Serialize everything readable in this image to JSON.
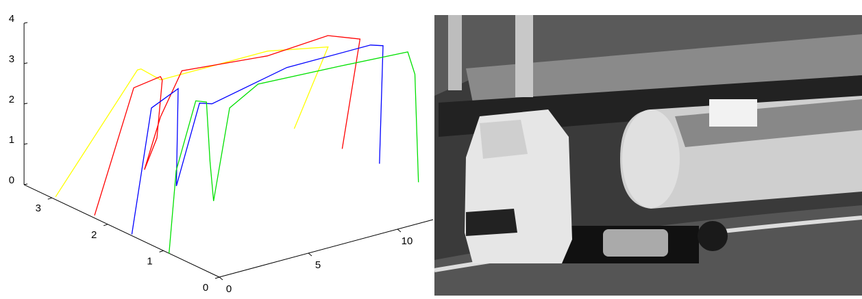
{
  "chart_data": {
    "type": "line3d",
    "xlim": [
      0,
      12
    ],
    "xticks": [
      0,
      5,
      10
    ],
    "ylim": [
      0,
      3.5
    ],
    "yticks": [
      0,
      1,
      2,
      3
    ],
    "zlim": [
      0,
      4
    ],
    "zticks": [
      0,
      1,
      2,
      3,
      4
    ],
    "series": [
      {
        "color": "#ffff00",
        "depth": 3,
        "x": [
          0.2,
          4.8,
          5.0,
          6.1,
          8.6,
          12.1,
          15.5,
          13.6
        ],
        "values": [
          0,
          2.6,
          2.6,
          2.2,
          2.2,
          2.2,
          1.9,
          0.1
        ]
      },
      {
        "color": "#ff0000",
        "depth": 2.3,
        "x": [
          0.2,
          2.4,
          3.9,
          4.0,
          3.7,
          3.0,
          3.9,
          5.1,
          9.9,
          13.3,
          15.1,
          14.1
        ],
        "values": [
          0,
          2.9,
          3.0,
          2.9,
          1.5,
          0.8,
          2.0,
          3.0,
          2.8,
          2.9,
          2.6,
          0
        ]
      },
      {
        "color": "#0000ff",
        "depth": 1.6,
        "x": [
          0.1,
          1.2,
          2.7,
          2.6,
          3.9,
          4.6,
          8.8,
          13.5,
          14.2,
          14.0
        ],
        "values": [
          0,
          3.0,
          3.3,
          0.9,
          2.8,
          2.7,
          3.1,
          3.1,
          3.0,
          0.1
        ]
      },
      {
        "color": "#00e000",
        "depth": 0.9,
        "x": [
          0,
          0.4,
          1.5,
          2.1,
          2.3,
          2.5,
          3.4,
          5.0,
          9.6,
          13.4,
          13.8,
          14.0
        ],
        "values": [
          0,
          2.0,
          3.6,
          3.5,
          2.0,
          1.0,
          3.2,
          3.6,
          3.5,
          3.4,
          2.8,
          0.1
        ]
      }
    ]
  }
}
